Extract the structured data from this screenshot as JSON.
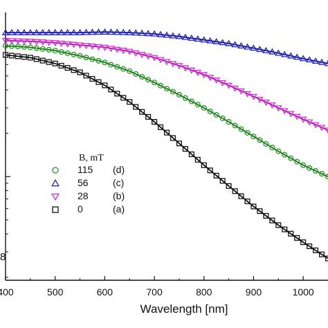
{
  "chart_data": {
    "type": "scatter",
    "y_scale": "log",
    "xlabel": "Wavelength [nm]",
    "ylabel": "",
    "xlim": [
      400,
      1050
    ],
    "ylim_log10": [
      -1.72,
      0.14
    ],
    "x_ticks": [
      400,
      500,
      600,
      700,
      800,
      900,
      1000
    ],
    "x_tick_labels": [
      "400",
      "500",
      "600",
      "700",
      "800",
      "900",
      "1000"
    ],
    "y_ticks_log10": [
      0,
      -1
    ],
    "y_tick_labels": [
      "",
      ""
    ],
    "left_edge_label": "8",
    "grid": false,
    "legend_title": "B, mT",
    "legend_position": "lower-left",
    "series": [
      {
        "name": "115",
        "tag": "(d)",
        "marker": "circle",
        "color": "#1f9a1f",
        "fit_color": "#117011",
        "x": [
          400,
          450,
          500,
          550,
          600,
          650,
          700,
          750,
          800,
          850,
          900,
          950,
          1000,
          1050
        ],
        "y": [
          0.81,
          0.79,
          0.75,
          0.69,
          0.62,
          0.54,
          0.45,
          0.37,
          0.3,
          0.24,
          0.19,
          0.15,
          0.12,
          0.1
        ]
      },
      {
        "name": "56",
        "tag": "(c)",
        "marker": "triangle-up",
        "color": "#1f1fbf",
        "fit_color": "#1111a0",
        "x": [
          400,
          450,
          500,
          550,
          600,
          650,
          700,
          750,
          800,
          850,
          900,
          950,
          1000,
          1050
        ],
        "y": [
          1.0,
          1.0,
          1.0,
          1.0,
          1.01,
          1.0,
          0.98,
          0.94,
          0.89,
          0.84,
          0.78,
          0.72,
          0.66,
          0.61
        ]
      },
      {
        "name": "28",
        "tag": "(b)",
        "marker": "triangle-down",
        "color": "#e024e0",
        "fit_color": "#9a1a9a",
        "x": [
          400,
          450,
          500,
          550,
          600,
          650,
          700,
          750,
          800,
          850,
          900,
          950,
          1000,
          1050
        ],
        "y": [
          0.88,
          0.87,
          0.85,
          0.82,
          0.79,
          0.74,
          0.67,
          0.59,
          0.51,
          0.43,
          0.36,
          0.3,
          0.25,
          0.21
        ]
      },
      {
        "name": "0",
        "tag": "(a)",
        "marker": "square",
        "color": "#111111",
        "fit_color": "#111111",
        "x": [
          400,
          450,
          500,
          550,
          600,
          650,
          700,
          750,
          800,
          850,
          900,
          950,
          1000,
          1050
        ],
        "y": [
          0.7,
          0.67,
          0.61,
          0.53,
          0.43,
          0.33,
          0.24,
          0.17,
          0.12,
          0.086,
          0.062,
          0.046,
          0.035,
          0.027
        ]
      }
    ]
  }
}
